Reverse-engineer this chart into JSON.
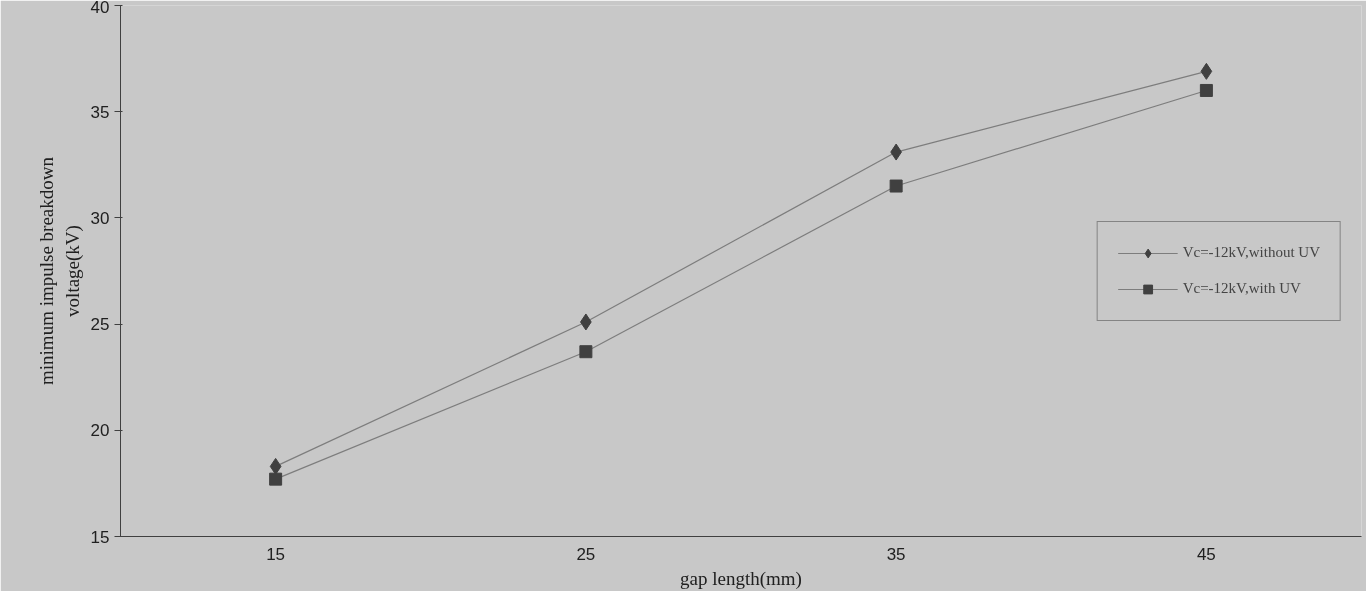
{
  "chart_data": {
    "type": "line",
    "xlabel": "gap length(mm)",
    "ylabel": "minimum impulse breakdown voltage(kV)",
    "categories": [
      "15",
      "25",
      "35",
      "45"
    ],
    "series": [
      {
        "name": "Vc=-12kV,without UV",
        "color": "#404040",
        "marker": "diamond",
        "values": [
          18.3,
          25.1,
          33.1,
          36.9
        ]
      },
      {
        "name": "Vc=-12kV,with UV",
        "color": "#404040",
        "marker": "square",
        "values": [
          17.7,
          23.7,
          31.5,
          36.0
        ]
      }
    ],
    "ylim": [
      15,
      40
    ],
    "yticks": [
      15,
      20,
      25,
      30,
      35,
      40
    ],
    "grid": false,
    "legend": "right",
    "line_style": "solid"
  }
}
